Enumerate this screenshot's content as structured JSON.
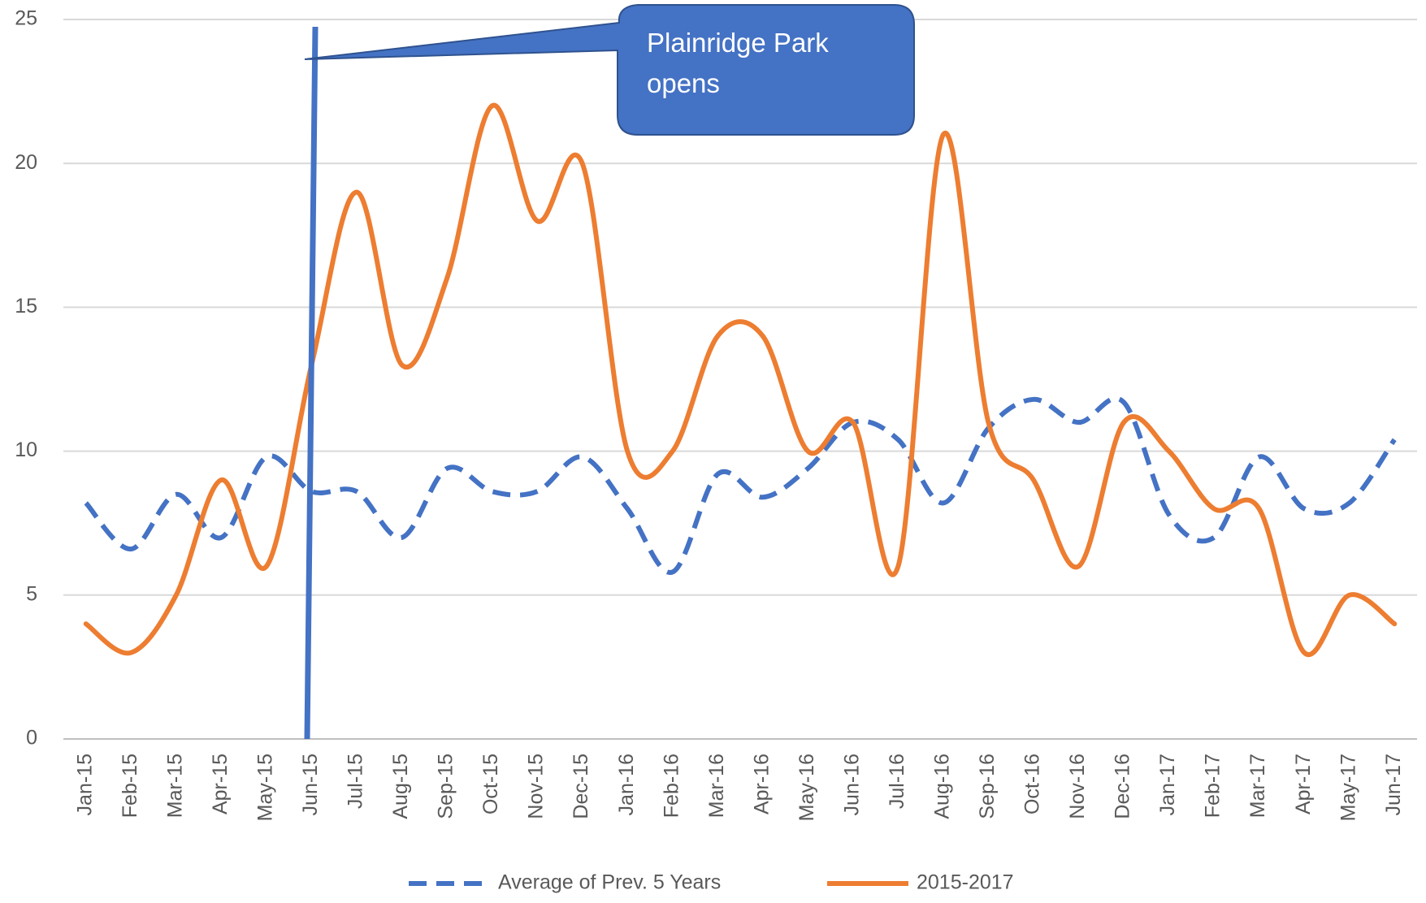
{
  "chart_data": {
    "type": "line",
    "categories": [
      "Jan-15",
      "Feb-15",
      "Mar-15",
      "Apr-15",
      "May-15",
      "Jun-15",
      "Jul-15",
      "Aug-15",
      "Sep-15",
      "Oct-15",
      "Nov-15",
      "Dec-15",
      "Jan-16",
      "Feb-16",
      "Mar-16",
      "Apr-16",
      "May-16",
      "Jun-16",
      "Jul-16",
      "Aug-16",
      "Sep-16",
      "Oct-16",
      "Nov-16",
      "Dec-16",
      "Jan-17",
      "Feb-17",
      "Mar-17",
      "Apr-17",
      "May-17",
      "Jun-17"
    ],
    "series": [
      {
        "name": "Average of Prev. 5 Years",
        "color": "#4472c4",
        "style": "dashed",
        "values": [
          8.2,
          6.6,
          8.5,
          7,
          9.8,
          8.6,
          8.6,
          7,
          9.4,
          8.6,
          8.6,
          9.8,
          8,
          5.8,
          9.2,
          8.4,
          9.4,
          11,
          10.4,
          8.2,
          10.8,
          11.8,
          11,
          11.7,
          7.8,
          7,
          9.8,
          8,
          8.2,
          10.4
        ]
      },
      {
        "name": "2015-2017",
        "color": "#ed7d31",
        "style": "solid",
        "values": [
          4,
          3,
          5,
          9,
          6,
          13,
          19,
          13,
          16,
          22,
          18,
          20,
          10,
          10,
          14,
          14,
          10,
          11,
          6,
          21,
          11,
          9,
          6,
          11,
          10,
          8,
          8,
          3,
          5,
          4
        ]
      }
    ],
    "ylim": [
      0,
      25
    ],
    "yticks": [
      0,
      5,
      10,
      15,
      20,
      25
    ],
    "grid": true,
    "legend": "bottom",
    "smooth": true,
    "annotation": "Plainridge Park opens"
  }
}
